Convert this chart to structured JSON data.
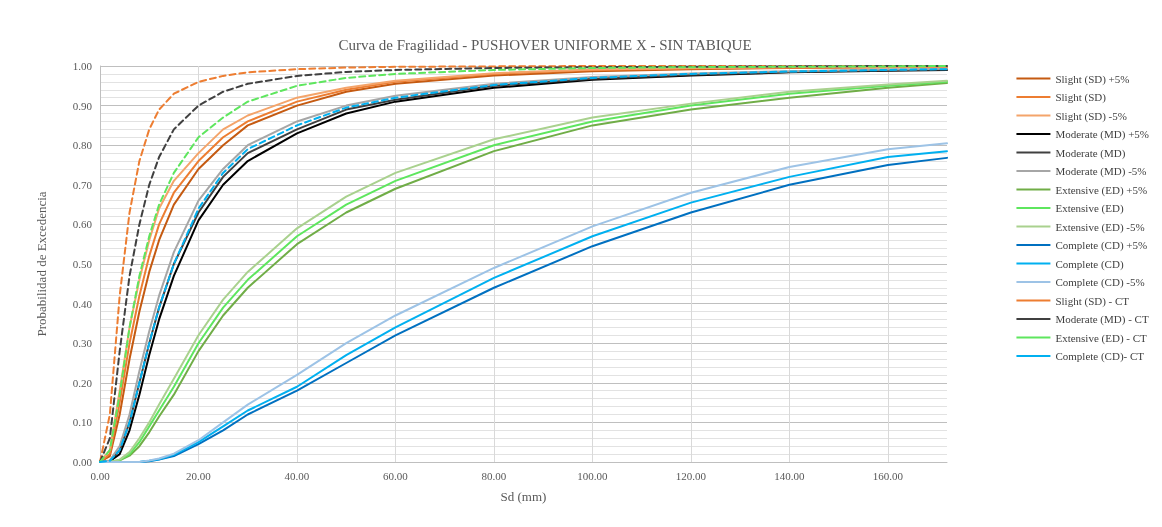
{
  "chart_data": {
    "type": "line",
    "title": "Curva de Fragilidad - PUSHOVER UNIFORME X - SIN TABIQUE",
    "xlabel": "Sd (mm)",
    "ylabel": "Probabilidad de Excedencia",
    "x": [
      0,
      2,
      4,
      6,
      8,
      10,
      12,
      15,
      20,
      25,
      30,
      40,
      50,
      60,
      80,
      100,
      120,
      140,
      160,
      172
    ],
    "xlim": [
      0,
      172
    ],
    "ylim": [
      0,
      1
    ],
    "xticks": [
      {
        "value": 0,
        "label": "0.00"
      },
      {
        "value": 20,
        "label": "20.00"
      },
      {
        "value": 40,
        "label": "40.00"
      },
      {
        "value": 60,
        "label": "60.00"
      },
      {
        "value": 80,
        "label": "80.00"
      },
      {
        "value": 100,
        "label": "100.00"
      },
      {
        "value": 120,
        "label": "120.00"
      },
      {
        "value": 140,
        "label": "140.00"
      },
      {
        "value": 160,
        "label": "160.00"
      }
    ],
    "yticks": [
      {
        "value": 0,
        "label": "0.00"
      },
      {
        "value": 0.1,
        "label": "0.10"
      },
      {
        "value": 0.2,
        "label": "0.20"
      },
      {
        "value": 0.3,
        "label": "0.30"
      },
      {
        "value": 0.4,
        "label": "0.40"
      },
      {
        "value": 0.5,
        "label": "0.50"
      },
      {
        "value": 0.6,
        "label": "0.60"
      },
      {
        "value": 0.7,
        "label": "0.70"
      },
      {
        "value": 0.8,
        "label": "0.80"
      },
      {
        "value": 0.9,
        "label": "0.90"
      },
      {
        "value": 1,
        "label": "1.00"
      }
    ],
    "grid": true,
    "legend": "right",
    "marker": "none",
    "line_style": "solid",
    "series": [
      {
        "name": "Slight (SD) +5%",
        "color": "#c55a11",
        "values": [
          0,
          0.015,
          0.12,
          0.26,
          0.38,
          0.48,
          0.56,
          0.65,
          0.74,
          0.8,
          0.85,
          0.9,
          0.935,
          0.955,
          0.976,
          0.987,
          0.992,
          0.995,
          0.997,
          0.998
        ]
      },
      {
        "name": "Slight (SD)",
        "color": "#ed7d31",
        "values": [
          0,
          0.02,
          0.15,
          0.3,
          0.42,
          0.52,
          0.6,
          0.68,
          0.76,
          0.82,
          0.86,
          0.91,
          0.94,
          0.96,
          0.98,
          0.99,
          0.994,
          0.996,
          0.997,
          0.998
        ]
      },
      {
        "name": "Slight (SD) -5%",
        "color": "#f4a46a",
        "values": [
          0,
          0.03,
          0.18,
          0.34,
          0.46,
          0.56,
          0.64,
          0.71,
          0.78,
          0.84,
          0.875,
          0.92,
          0.945,
          0.963,
          0.982,
          0.991,
          0.995,
          0.997,
          0.998,
          0.999
        ]
      },
      {
        "name": "Moderate (MD) +5%",
        "color": "#000000",
        "values": [
          0,
          0.002,
          0.02,
          0.08,
          0.17,
          0.27,
          0.36,
          0.47,
          0.61,
          0.7,
          0.76,
          0.83,
          0.88,
          0.91,
          0.945,
          0.965,
          0.976,
          0.984,
          0.988,
          0.99
        ]
      },
      {
        "name": "Moderate (MD)",
        "color": "#404040",
        "values": [
          0,
          0.003,
          0.03,
          0.1,
          0.2,
          0.3,
          0.39,
          0.5,
          0.63,
          0.72,
          0.78,
          0.84,
          0.89,
          0.915,
          0.95,
          0.968,
          0.978,
          0.985,
          0.989,
          0.991
        ]
      },
      {
        "name": "Moderate (MD) -5%",
        "color": "#a6a6a6",
        "values": [
          0,
          0.004,
          0.04,
          0.12,
          0.23,
          0.33,
          0.42,
          0.53,
          0.66,
          0.74,
          0.8,
          0.86,
          0.9,
          0.925,
          0.955,
          0.972,
          0.981,
          0.987,
          0.991,
          0.993
        ]
      },
      {
        "name": "Extensive (ED) +5%",
        "color": "#70ad47",
        "values": [
          0,
          0,
          0.004,
          0.016,
          0.04,
          0.075,
          0.115,
          0.17,
          0.28,
          0.37,
          0.44,
          0.55,
          0.63,
          0.69,
          0.785,
          0.85,
          0.89,
          0.92,
          0.945,
          0.957
        ]
      },
      {
        "name": "Extensive (ED)",
        "color": "#5ee65e",
        "values": [
          0,
          0,
          0.005,
          0.02,
          0.05,
          0.09,
          0.13,
          0.19,
          0.3,
          0.39,
          0.46,
          0.57,
          0.65,
          0.71,
          0.8,
          0.86,
          0.9,
          0.93,
          0.95,
          0.96
        ]
      },
      {
        "name": "Extensive (ED) -5%",
        "color": "#a9d18e",
        "values": [
          0,
          0,
          0.006,
          0.025,
          0.06,
          0.1,
          0.145,
          0.21,
          0.32,
          0.41,
          0.48,
          0.59,
          0.67,
          0.73,
          0.815,
          0.87,
          0.905,
          0.935,
          0.953,
          0.963
        ]
      },
      {
        "name": "Complete (CD) +5%",
        "color": "#0070c0",
        "values": [
          0,
          0,
          0,
          0,
          0,
          0.002,
          0.006,
          0.015,
          0.045,
          0.08,
          0.12,
          0.18,
          0.25,
          0.32,
          0.44,
          0.545,
          0.63,
          0.7,
          0.75,
          0.768
        ]
      },
      {
        "name": "Complete (CD)",
        "color": "#00b0f0",
        "values": [
          0,
          0,
          0,
          0,
          0,
          0.003,
          0.007,
          0.018,
          0.05,
          0.09,
          0.13,
          0.19,
          0.27,
          0.34,
          0.465,
          0.57,
          0.655,
          0.72,
          0.77,
          0.785
        ]
      },
      {
        "name": "Complete (CD) -5%",
        "color": "#9dc3e6",
        "values": [
          0,
          0,
          0,
          0,
          0,
          0.004,
          0.009,
          0.021,
          0.055,
          0.1,
          0.145,
          0.22,
          0.3,
          0.37,
          0.49,
          0.595,
          0.68,
          0.745,
          0.79,
          0.805
        ]
      },
      {
        "name": "Slight (SD) - CT",
        "color": "#ed7d31",
        "line_style": "dashed",
        "values": [
          0,
          0.12,
          0.42,
          0.63,
          0.76,
          0.84,
          0.89,
          0.93,
          0.96,
          0.975,
          0.984,
          0.992,
          0.996,
          0.998,
          0.999,
          1,
          1,
          1,
          1,
          1
        ]
      },
      {
        "name": "Moderate (MD) - CT",
        "color": "#404040",
        "line_style": "dashed",
        "values": [
          0,
          0.06,
          0.28,
          0.47,
          0.6,
          0.7,
          0.77,
          0.84,
          0.9,
          0.935,
          0.955,
          0.975,
          0.985,
          0.99,
          0.995,
          0.997,
          0.998,
          0.999,
          1,
          1
        ]
      },
      {
        "name": "Extensive (ED) - CT",
        "color": "#5ee65e",
        "line_style": "dashed",
        "values": [
          0,
          0.03,
          0.17,
          0.34,
          0.47,
          0.57,
          0.65,
          0.73,
          0.82,
          0.87,
          0.91,
          0.95,
          0.97,
          0.98,
          0.99,
          0.995,
          0.997,
          0.998,
          0.999,
          1
        ]
      },
      {
        "name": "Complete (CD)- CT",
        "color": "#00b0f0",
        "line_style": "dashed",
        "values": [
          0,
          0.003,
          0.03,
          0.1,
          0.2,
          0.3,
          0.39,
          0.5,
          0.64,
          0.73,
          0.79,
          0.85,
          0.895,
          0.92,
          0.952,
          0.97,
          0.98,
          0.986,
          0.99,
          0.992
        ]
      }
    ]
  }
}
